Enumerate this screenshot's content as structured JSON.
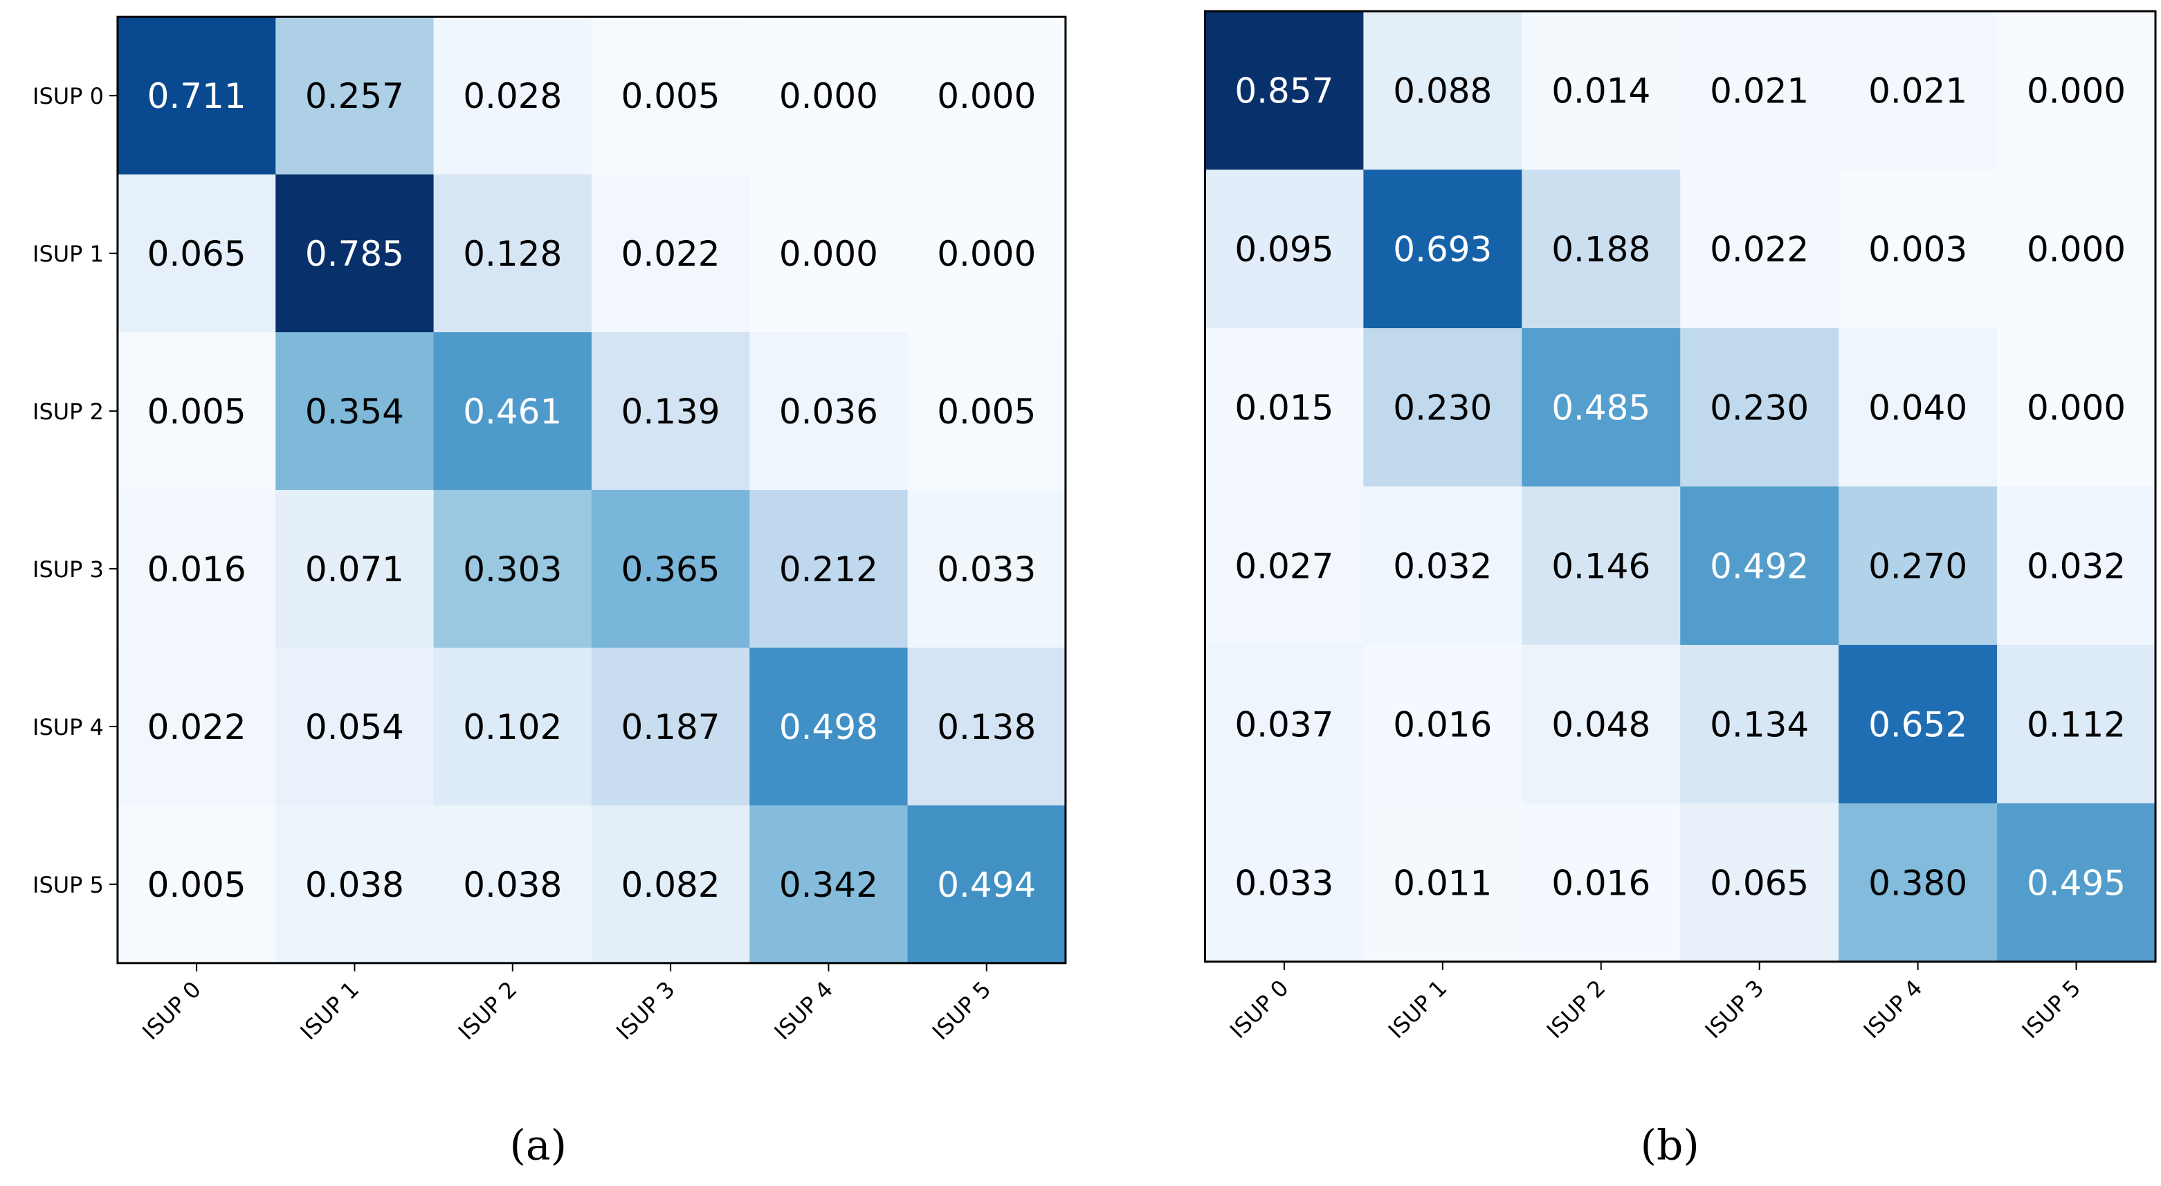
{
  "colormap": "Blues",
  "chart_data": [
    {
      "type": "heatmap",
      "caption": "(a)",
      "row_labels": [
        "ISUP 0",
        "ISUP 1",
        "ISUP 2",
        "ISUP 3",
        "ISUP 4",
        "ISUP 5"
      ],
      "col_labels": [
        "ISUP 0",
        "ISUP 1",
        "ISUP 2",
        "ISUP 3",
        "ISUP 4",
        "ISUP 5"
      ],
      "values": [
        [
          0.711,
          0.257,
          0.028,
          0.005,
          0.0,
          0.0
        ],
        [
          0.065,
          0.785,
          0.128,
          0.022,
          0.0,
          0.0
        ],
        [
          0.005,
          0.354,
          0.461,
          0.139,
          0.036,
          0.005
        ],
        [
          0.016,
          0.071,
          0.303,
          0.365,
          0.212,
          0.033
        ],
        [
          0.022,
          0.054,
          0.102,
          0.187,
          0.498,
          0.138
        ],
        [
          0.005,
          0.038,
          0.038,
          0.082,
          0.342,
          0.494
        ]
      ]
    },
    {
      "type": "heatmap",
      "caption": "(b)",
      "row_labels": [],
      "col_labels": [
        "ISUP 0",
        "ISUP 1",
        "ISUP 2",
        "ISUP 3",
        "ISUP 4",
        "ISUP 5"
      ],
      "values": [
        [
          0.857,
          0.088,
          0.014,
          0.021,
          0.021,
          0.0
        ],
        [
          0.095,
          0.693,
          0.188,
          0.022,
          0.003,
          0.0
        ],
        [
          0.015,
          0.23,
          0.485,
          0.23,
          0.04,
          0.0
        ],
        [
          0.027,
          0.032,
          0.146,
          0.492,
          0.27,
          0.032
        ],
        [
          0.037,
          0.016,
          0.048,
          0.134,
          0.652,
          0.112
        ],
        [
          0.033,
          0.011,
          0.016,
          0.065,
          0.38,
          0.495
        ]
      ]
    }
  ]
}
